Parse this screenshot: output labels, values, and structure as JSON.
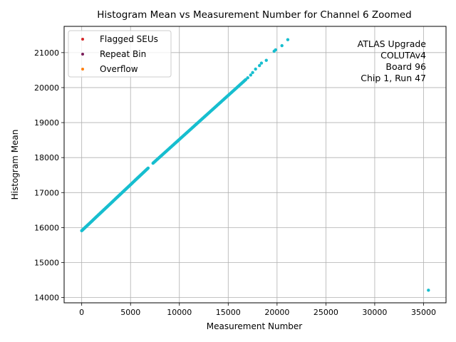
{
  "chart_data": {
    "type": "scatter",
    "title": "Histogram Mean vs Measurement Number for Channel 6 Zoomed",
    "xlabel": "Measurement Number",
    "ylabel": "Histogram Mean",
    "xlim": [
      -1800,
      37300
    ],
    "ylim": [
      13850,
      21750
    ],
    "x_ticks": [
      0,
      5000,
      10000,
      15000,
      20000,
      25000,
      30000,
      35000
    ],
    "y_ticks": [
      14000,
      15000,
      16000,
      17000,
      18000,
      19000,
      20000,
      21000
    ],
    "grid": true,
    "legend_position": "top-left",
    "legend": [
      {
        "label": "Flagged SEUs",
        "color": "#d62728"
      },
      {
        "label": "Repeat Bin",
        "color": "#7b1e5a"
      },
      {
        "label": "Overflow",
        "color": "#ff7f0e"
      }
    ],
    "annotation_lines": [
      "ATLAS Upgrade",
      "COLUTAv4",
      "Board 96",
      "Chip 1, Run 47"
    ],
    "series": [
      {
        "color": "#17becf",
        "dense_segments": [
          {
            "x": [
              0,
              6800
            ],
            "y": [
              15910,
              17700
            ]
          },
          {
            "x": [
              7300,
              16800
            ],
            "y": [
              17840,
              20230
            ]
          }
        ],
        "points": [
          {
            "x": 17000,
            "y": 20280
          },
          {
            "x": 17300,
            "y": 20360
          },
          {
            "x": 17500,
            "y": 20430
          },
          {
            "x": 17800,
            "y": 20530
          },
          {
            "x": 18200,
            "y": 20630
          },
          {
            "x": 18400,
            "y": 20700
          },
          {
            "x": 18900,
            "y": 20780
          },
          {
            "x": 19700,
            "y": 21040
          },
          {
            "x": 19850,
            "y": 21080
          },
          {
            "x": 20500,
            "y": 21200
          },
          {
            "x": 21100,
            "y": 21370
          },
          {
            "x": 35500,
            "y": 14210
          }
        ]
      }
    ]
  }
}
